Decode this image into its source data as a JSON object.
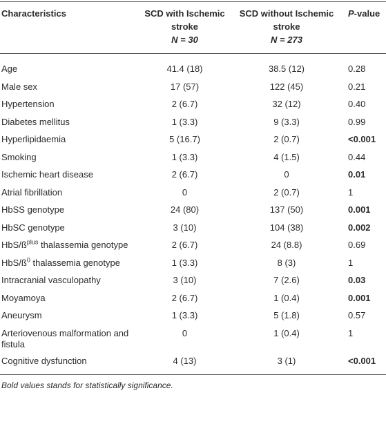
{
  "table": {
    "header": [
      {
        "text": "Characteristics"
      },
      {
        "text": "SCD with Ischemic stroke",
        "n": "N = 30"
      },
      {
        "text": "SCD without Ischemic stroke",
        "n": "N = 273"
      },
      {
        "italic": "P",
        "text": "-value"
      }
    ],
    "rows": [
      {
        "label": "Age",
        "with": "41.4 (18)",
        "without": "38.5 (12)",
        "p": "0.28"
      },
      {
        "label": "Male sex",
        "with": "17 (57)",
        "without": "122 (45)",
        "p": "0.21"
      },
      {
        "label": "Hypertension",
        "with": "2 (6.7)",
        "without": "32 (12)",
        "p": "0.40"
      },
      {
        "label": "Diabetes mellitus",
        "with": "1 (3.3)",
        "without": "9 (3.3)",
        "p": "0.99"
      },
      {
        "label": "Hyperlipidaemia",
        "with": "5 (16.7)",
        "without": "2 (0.7)",
        "p": "<0.001",
        "bold": true
      },
      {
        "label": "Smoking",
        "with": "1 (3.3)",
        "without": "4 (1.5)",
        "p": "0.44"
      },
      {
        "label": "Ischemic heart disease",
        "with": "2 (6.7)",
        "without": "0",
        "p": "0.01",
        "bold": true
      },
      {
        "label": "Atrial fibrillation",
        "with": "0",
        "without": "2 (0.7)",
        "p": "1"
      },
      {
        "label": "HbSS genotype",
        "with": "24 (80)",
        "without": "137 (50)",
        "p": "0.001",
        "bold": true
      },
      {
        "label": "HbSC genotype",
        "with": "3 (10)",
        "without": "104 (38)",
        "p": "0.002",
        "bold": true
      },
      {
        "label": "HbS/ß",
        "sup": "plus",
        "rest": " thalassemia genotype",
        "with": "2 (6.7)",
        "without": "24 (8.8)",
        "p": "0.69"
      },
      {
        "label": "HbS/ß",
        "sup": "0",
        "rest": " thalassemia genotype",
        "with": "1 (3.3)",
        "without": "8 (3)",
        "p": "1"
      },
      {
        "label": "Intracranial vasculopathy",
        "with": "3 (10)",
        "without": "7 (2.6)",
        "p": "0.03",
        "bold": true
      },
      {
        "label": "Moyamoya",
        "with": "2 (6.7)",
        "without": "1 (0.4)",
        "p": "0.001",
        "bold": true
      },
      {
        "label": "Aneurysm",
        "with": "1 (3.3)",
        "without": "5 (1.8)",
        "p": "0.57"
      },
      {
        "label": "Arteriovenous malformation and fistula",
        "with": "0",
        "without": "1 (0.4)",
        "p": "1"
      },
      {
        "label": "Cognitive dysfunction",
        "with": "4 (13)",
        "without": "3 (1)",
        "p": "<0.001",
        "bold": true
      }
    ],
    "footnote": "Bold values stands for statistically significance."
  }
}
